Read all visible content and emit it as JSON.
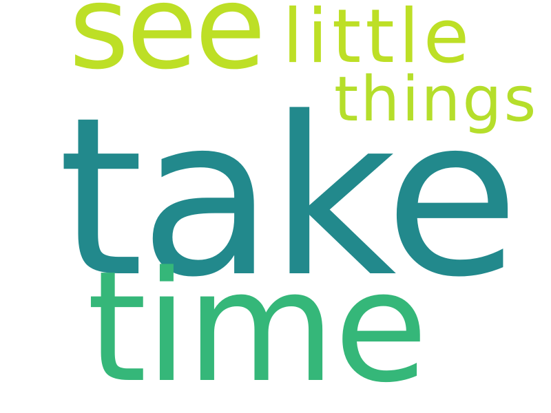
{
  "word_cloud": {
    "words": [
      {
        "key": "take",
        "text": "take",
        "color": "#22898c"
      },
      {
        "key": "time",
        "text": "time",
        "color": "#35b779"
      },
      {
        "key": "see",
        "text": "see",
        "color": "#bddf26"
      },
      {
        "key": "little",
        "text": "little",
        "color": "#bddf26"
      },
      {
        "key": "things",
        "text": "things",
        "color": "#b5de2b"
      }
    ]
  }
}
